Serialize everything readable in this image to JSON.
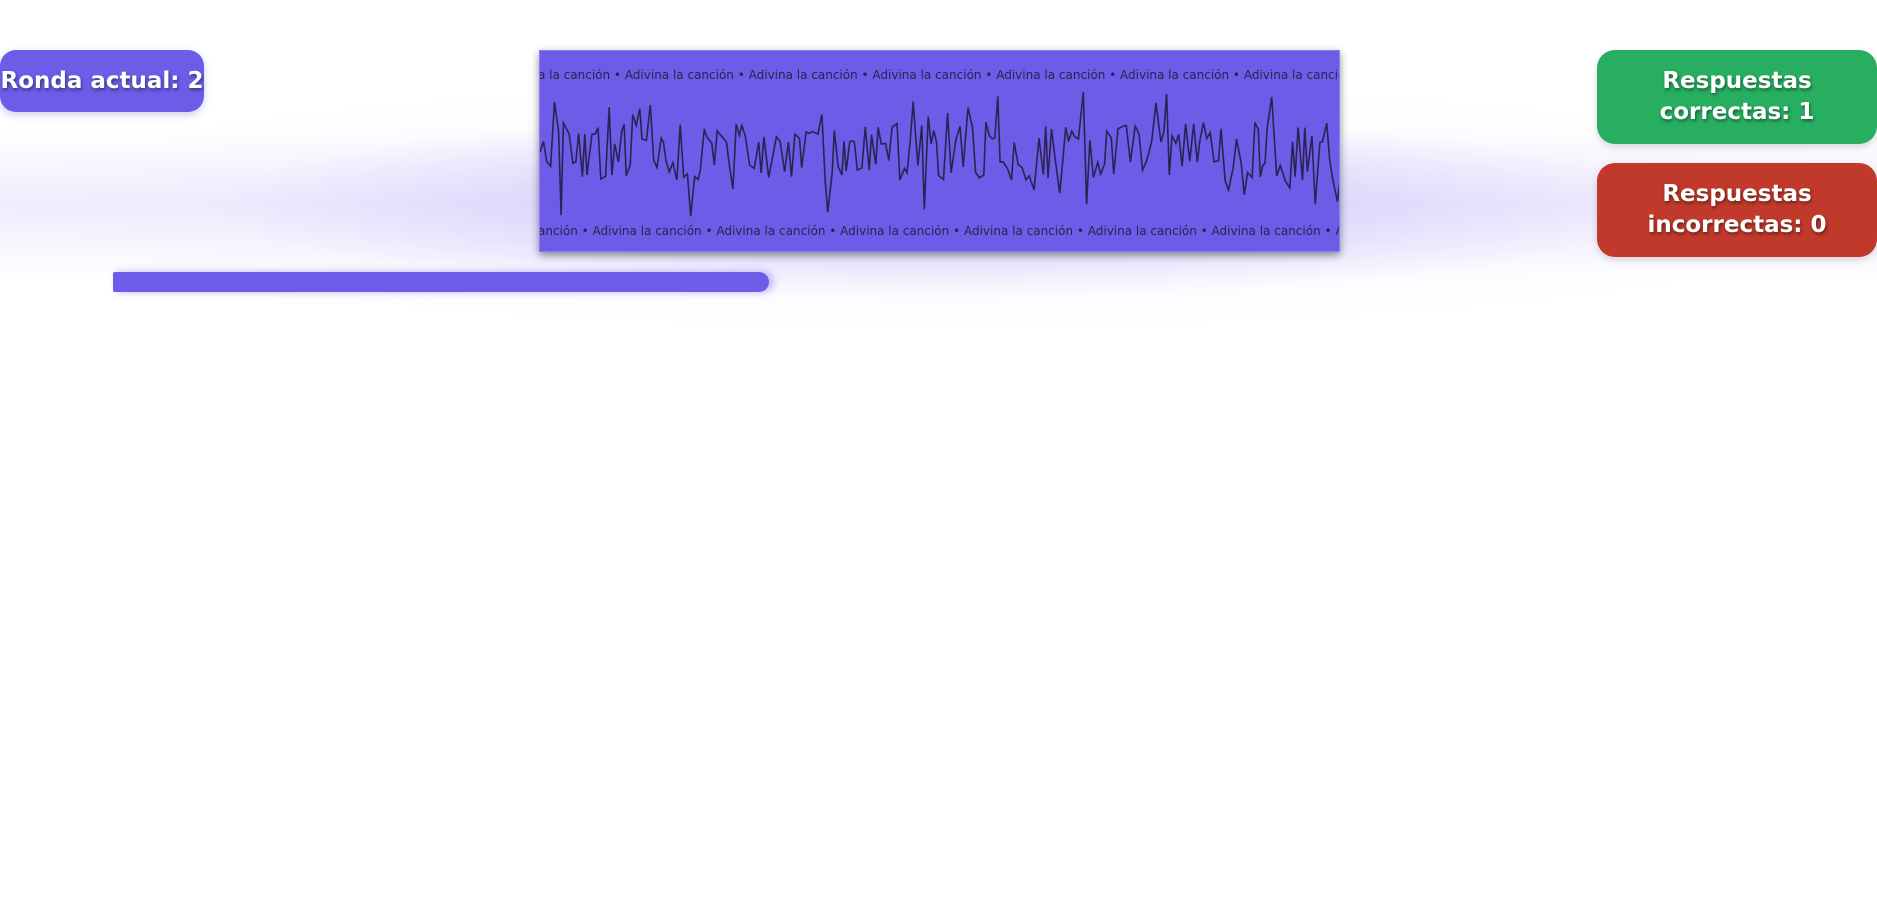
{
  "game": {
    "round_label": "Ronda actual: 2",
    "correct_label": "Respuestas correctas: 1",
    "incorrect_label": "Respuestas incorrectas: 0",
    "marquee_text": "Adivina la canción",
    "marquee_separator": " • "
  },
  "progress": {
    "fraction": 0.83,
    "fill_color": "#6c5ce7"
  },
  "colors": {
    "accent": "#6c5ce7",
    "correct": "#27ae60",
    "incorrect": "#c0392b",
    "waveform": "#2b2250"
  }
}
